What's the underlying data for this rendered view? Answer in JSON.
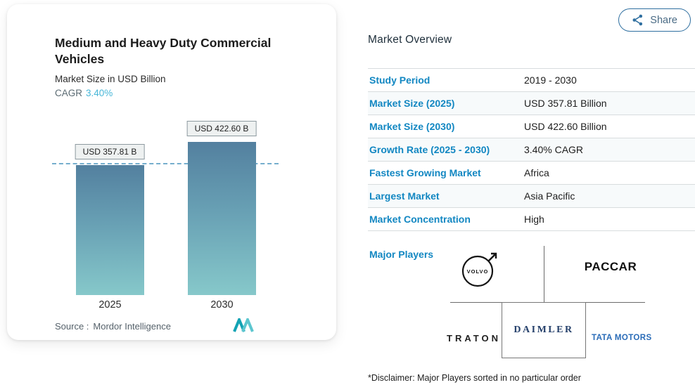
{
  "share": {
    "label": "Share"
  },
  "card": {
    "title": "Medium and Heavy Duty Commercial Vehicles",
    "subtitle": "Market Size in USD Billion",
    "cagr_label": "CAGR",
    "cagr_value": "3.40%",
    "source_label": "Source :",
    "source_value": "Mordor Intelligence"
  },
  "chart_data": {
    "type": "bar",
    "title": "Medium and Heavy Duty Commercial Vehicles",
    "subtitle": "Market Size in USD Billion",
    "unit": "USD Billion",
    "cagr": "3.40%",
    "categories": [
      "2025",
      "2030"
    ],
    "values": [
      357.81,
      422.6
    ],
    "value_labels": [
      "USD 357.81 B",
      "USD 422.60 B"
    ],
    "ylim": [
      0,
      440
    ],
    "grid": false,
    "reference_line": 357.81,
    "legend": "none"
  },
  "overview": {
    "title": "Market Overview",
    "rows": [
      {
        "label": "Study Period",
        "value": "2019 - 2030"
      },
      {
        "label": "Market Size (2025)",
        "value": "USD 357.81 Billion"
      },
      {
        "label": "Market Size (2030)",
        "value": "USD 422.60 Billion"
      },
      {
        "label": "Growth Rate (2025 - 2030)",
        "value": "3.40% CAGR"
      },
      {
        "label": "Fastest Growing Market",
        "value": "Africa"
      },
      {
        "label": "Largest Market",
        "value": "Asia Pacific"
      },
      {
        "label": "Market Concentration",
        "value": "High"
      }
    ],
    "major_players_label": "Major Players",
    "players": [
      "VOLVO",
      "PACCAR",
      "TRATON",
      "DAIMLER",
      "TATA MOTORS"
    ]
  },
  "disclaimer": "*Disclaimer: Major Players sorted in no particular order",
  "colors": {
    "label_blue": "#1287c2",
    "cagr_teal": "#49b7d8",
    "bar_gradient_top": "#53809f",
    "bar_gradient_bottom": "#8fd2d2",
    "share_border_blue": "#2f6fa0",
    "daimler_navy": "#25406b",
    "tata_blue": "#2a6cb8"
  }
}
